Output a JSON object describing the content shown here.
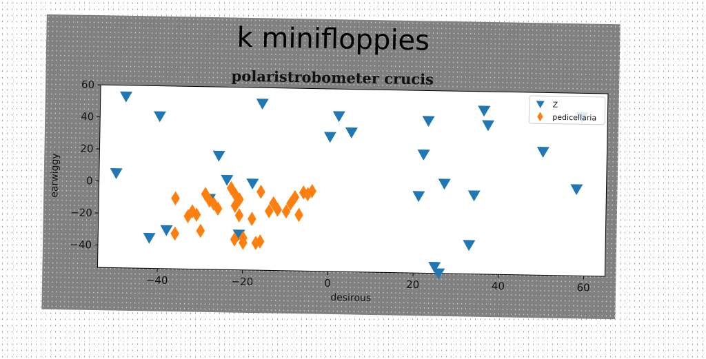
{
  "chart_data": {
    "type": "scatter",
    "title": "k minifloppies",
    "subtitle": "polaristrobometer crucis",
    "xlabel": "desirous",
    "ylabel": "earwiggy",
    "xlim": [
      -54,
      65
    ],
    "ylim": [
      -54,
      60
    ],
    "xticks": [
      -40,
      -20,
      0,
      20,
      40,
      60
    ],
    "xtick_labels": [
      "−40",
      "−20",
      "0",
      "20",
      "40",
      "60"
    ],
    "yticks": [
      -40,
      -20,
      0,
      20,
      40,
      60
    ],
    "ytick_labels": [
      "−40",
      "−20",
      "0",
      "20",
      "40",
      "60"
    ],
    "grid": false,
    "legend_position": "top-right",
    "series": [
      {
        "name": "Z",
        "marker": "triangle-down",
        "color": "#1f77b4",
        "points": [
          [
            -48,
            53
          ],
          [
            -40,
            41
          ],
          [
            -26,
            17
          ],
          [
            -16,
            50
          ],
          [
            -24,
            2
          ],
          [
            -18,
            0
          ],
          [
            -50,
            5
          ],
          [
            -42,
            -35
          ],
          [
            -38,
            -30
          ],
          [
            -28,
            -10
          ],
          [
            -21,
            -32
          ],
          [
            0,
            30
          ],
          [
            2,
            43
          ],
          [
            5,
            33
          ],
          [
            21,
            -6
          ],
          [
            22,
            20
          ],
          [
            23,
            41
          ],
          [
            25,
            -50
          ],
          [
            26,
            -54
          ],
          [
            27,
            2
          ],
          [
            33,
            -36
          ],
          [
            34,
            -5
          ],
          [
            36,
            48
          ],
          [
            37,
            39
          ],
          [
            50,
            23
          ],
          [
            58,
            0
          ],
          [
            59,
            45
          ]
        ]
      },
      {
        "name": "pedicellaria",
        "marker": "diamond",
        "color": "#ff7f0e",
        "points": [
          [
            -36,
            -10
          ],
          [
            -36,
            -32
          ],
          [
            -33,
            -21
          ],
          [
            -32,
            -18
          ],
          [
            -31,
            -20
          ],
          [
            -30,
            -30
          ],
          [
            -29,
            -7
          ],
          [
            -28,
            -11
          ],
          [
            -27,
            -13
          ],
          [
            -26,
            -16
          ],
          [
            -23,
            -3
          ],
          [
            -22,
            -35
          ],
          [
            -22,
            -7
          ],
          [
            -22,
            -14
          ],
          [
            -21,
            -20
          ],
          [
            -21,
            -10
          ],
          [
            -20,
            -34
          ],
          [
            -20,
            -37
          ],
          [
            -18,
            -22
          ],
          [
            -17,
            -37
          ],
          [
            -16,
            -36
          ],
          [
            -16,
            -5
          ],
          [
            -14,
            -17
          ],
          [
            -13,
            -12
          ],
          [
            -12,
            -16
          ],
          [
            -10,
            -17
          ],
          [
            -9,
            -12
          ],
          [
            -8,
            -8
          ],
          [
            -7,
            -19
          ],
          [
            -6,
            -5
          ],
          [
            -5,
            -6
          ],
          [
            -4,
            -4
          ]
        ]
      }
    ]
  }
}
